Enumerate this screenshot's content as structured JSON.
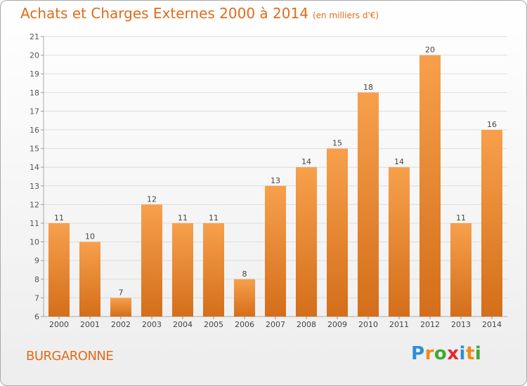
{
  "title": "Achats et Charges Externes 2000 à 2014",
  "unit": "(en milliers d'€)",
  "commune": "BURGARONNE",
  "brand": {
    "letters": [
      "P",
      "r",
      "o",
      "x",
      "i",
      "t",
      "i"
    ],
    "colors": [
      "#2e8fd6",
      "#f08a1c",
      "#3fa832",
      "#e8262b",
      "#2e8fd6",
      "#f08a1c",
      "#3fa832"
    ]
  },
  "colors": {
    "title": "#e06b1a",
    "bar_top": "#f7a04c",
    "bar_bottom": "#d46e1a",
    "grid": "#dddddd"
  },
  "chart_data": {
    "type": "bar",
    "title": "Achats et Charges Externes 2000 à 2014",
    "unit": "(en milliers d'€)",
    "categories": [
      "2000",
      "2001",
      "2002",
      "2003",
      "2004",
      "2005",
      "2006",
      "2007",
      "2008",
      "2009",
      "2010",
      "2011",
      "2012",
      "2013",
      "2014"
    ],
    "values": [
      11,
      10,
      7,
      12,
      11,
      11,
      8,
      13,
      14,
      15,
      18,
      14,
      20,
      11,
      16
    ],
    "ylim": [
      6,
      21
    ],
    "yticks": [
      6,
      7,
      8,
      9,
      10,
      11,
      12,
      13,
      14,
      15,
      16,
      17,
      18,
      19,
      20,
      21
    ],
    "grid": true,
    "data_labels": true
  }
}
